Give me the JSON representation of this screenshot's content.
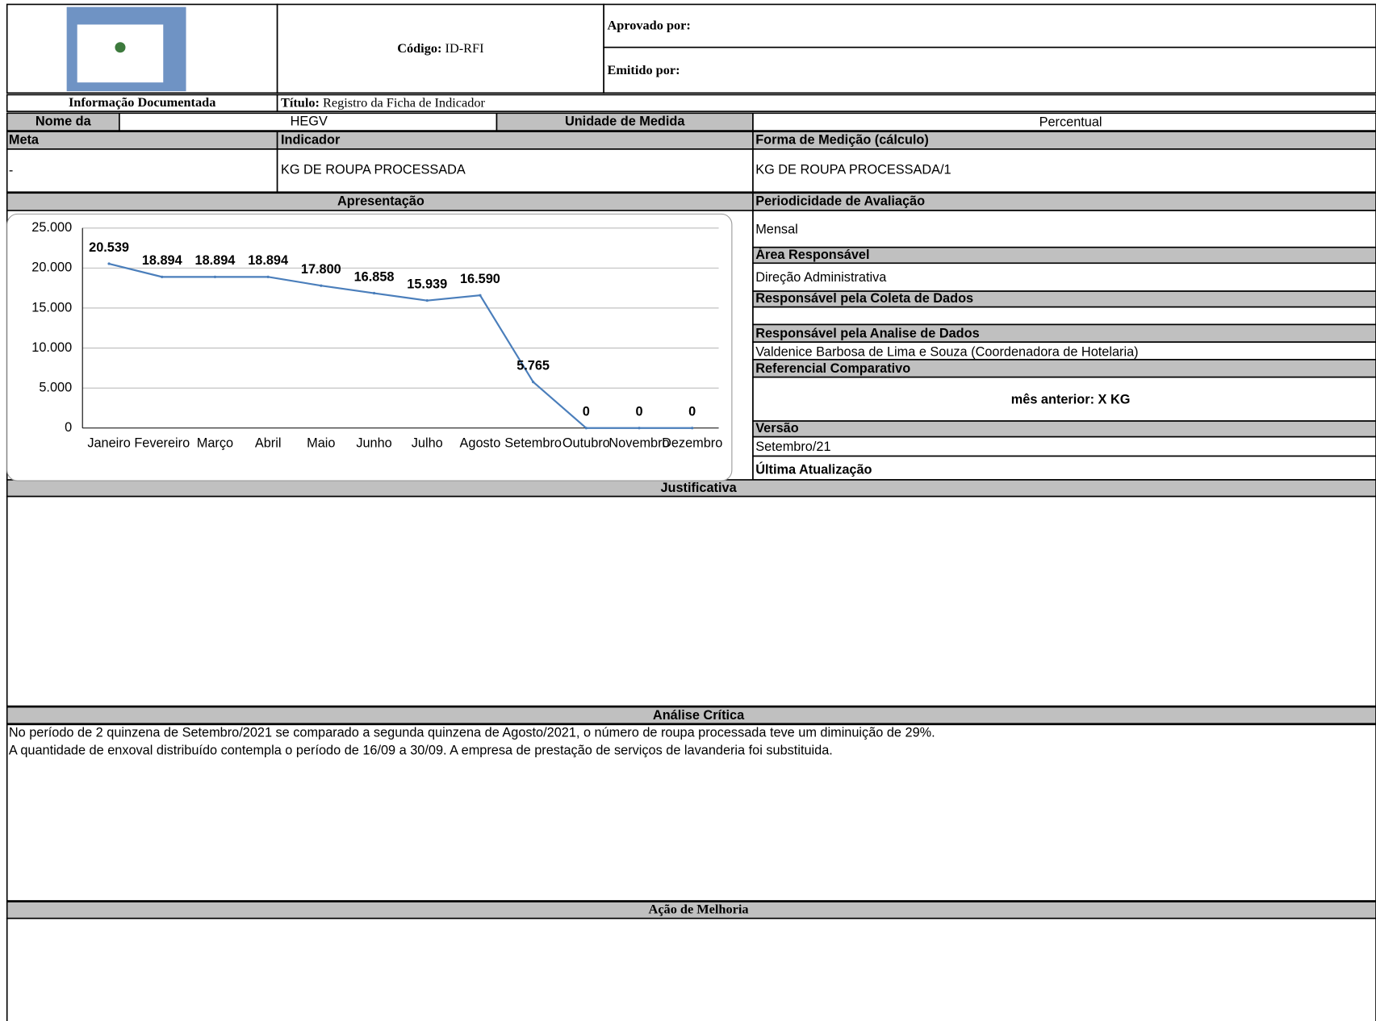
{
  "header": {
    "code_label": "Código:",
    "code": "ID-RFI",
    "approved_by": "Aprovado por:",
    "issued_by": "Emitido por:",
    "doc_info": "Informação Documentada",
    "title_label": "Título:",
    "title": "Registro da Ficha de Indicador"
  },
  "fields": {
    "name_label": "Nome da",
    "name": "HEGV",
    "unit_label": "Unidade de Medida",
    "unit": "Percentual",
    "meta_label": "Meta",
    "meta": "-",
    "indicator_label": "Indicador",
    "indicator": "KG DE ROUPA PROCESSADA",
    "formula_label": "Forma de Medição (cálculo)",
    "formula": "KG DE ROUPA PROCESSADA/1",
    "presentation_label": "Apresentação",
    "periodicity_label": "Periodicidade de Avaliação",
    "periodicity": "Mensal",
    "area_label": "Área Responsável",
    "area": "Direção Administrativa",
    "collection_label": "Responsável pela Coleta de Dados",
    "analysis_label": "Responsável pela Analise de Dados",
    "analyst": "Valdenice Barbosa de Lima e Souza (Coordenadora de Hotelaria)",
    "reference_label": "Referencial Comparativo",
    "reference": "mês anterior: X KG",
    "version_label": "Versão",
    "version": "Setembro/21",
    "updated_label": "Última Atualização"
  },
  "sections": {
    "justification_label": "Justificativa",
    "critical_label": "Análise Crítica",
    "critical_lines": [
      "No período de 2 quinzena de Setembro/2021 se comparado a  segunda quinzena de Agosto/2021, o número de roupa processada teve um diminuição de 29%.",
      "A quantidade de enxoval distribuído contempla o período de 16/09 a 30/09. A empresa de prestação de serviços de lavanderia foi substituida."
    ],
    "improvement_label": "Ação de Melhoria"
  },
  "chart_data": {
    "type": "line",
    "categories": [
      "Janeiro",
      "Fevereiro",
      "Março",
      "Abril",
      "Maio",
      "Junho",
      "Julho",
      "Agosto",
      "Setembro",
      "Outubro",
      "Novembro",
      "Dezembro"
    ],
    "values": [
      20539,
      18894,
      18894,
      18894,
      17800,
      16858,
      15939,
      16590,
      5765,
      0,
      0,
      0
    ],
    "value_labels": [
      "20.539",
      "18.894",
      "18.894",
      "18.894",
      "17.800",
      "16.858",
      "15.939",
      "16.590",
      "5.765",
      "0",
      "0",
      "0"
    ],
    "color": "#4a7ebb",
    "ylim": [
      0,
      25000
    ],
    "yticks": [
      0,
      {
        "value": 5000,
        "label": "5.000"
      },
      {
        "value": 10000,
        "label": "10.000"
      },
      {
        "value": 15000,
        "label": "15.000"
      },
      {
        "value": 20000,
        "label": "20.000"
      },
      {
        "value": 25000,
        "label": "25.000"
      }
    ],
    "grid": true
  }
}
